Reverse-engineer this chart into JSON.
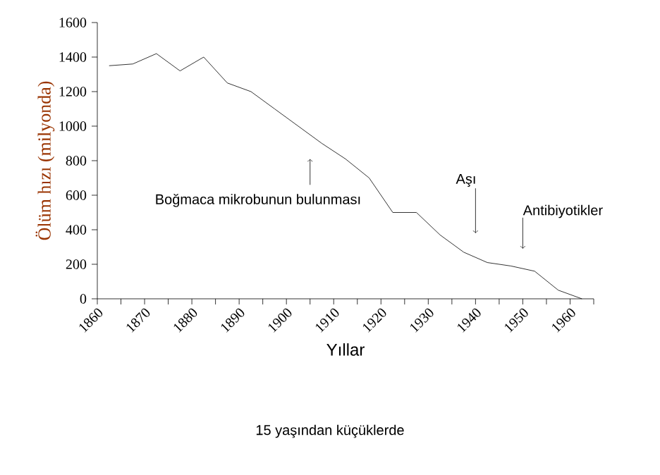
{
  "chart_data": {
    "type": "line",
    "xlabel": "Yıllar",
    "ylabel": "Ölüm hızı (milyonda)",
    "x": [
      1862.5,
      1867.5,
      1872.5,
      1877.5,
      1882.5,
      1887.5,
      1892.5,
      1897.5,
      1902.5,
      1907.5,
      1912.5,
      1917.5,
      1922.5,
      1927.5,
      1932.5,
      1937.5,
      1942.5,
      1947.5,
      1952.5,
      1957.5,
      1962.5
    ],
    "series": [
      {
        "color": "#000000",
        "values": [
          1350,
          1360,
          1420,
          1320,
          1400,
          1250,
          1200,
          1100,
          1000,
          900,
          810,
          700,
          500,
          500,
          370,
          270,
          210,
          190,
          160,
          50,
          0
        ]
      }
    ],
    "xlim": [
      1860,
      1965
    ],
    "xticks": [
      1860,
      {
        "value": 1865,
        "label": null
      },
      1870,
      {
        "value": 1875,
        "label": null
      },
      1880,
      {
        "value": 1885,
        "label": null
      },
      1890,
      {
        "value": 1895,
        "label": null
      },
      1900,
      {
        "value": 1905,
        "label": null
      },
      1910,
      {
        "value": 1915,
        "label": null
      },
      1920,
      {
        "value": 1925,
        "label": null
      },
      1930,
      {
        "value": 1935,
        "label": null
      },
      1940,
      {
        "value": 1945,
        "label": null
      },
      1950,
      {
        "value": 1955,
        "label": null
      },
      1960,
      {
        "value": 1965,
        "label": null
      }
    ],
    "ylim": [
      0,
      1600
    ],
    "yticks": [
      0,
      200,
      400,
      600,
      800,
      1000,
      1200,
      1400,
      1600
    ],
    "grid": false,
    "marker": "none",
    "line_style": "solid",
    "annotations": [
      {
        "text": "Boğmaca mikrobunun bulunması",
        "x": 1905,
        "y": 810
      },
      {
        "text": "Aşı",
        "x": 1940,
        "y": 380
      },
      {
        "text": "Antibiyotikler",
        "x": 1950,
        "y": 290
      },
      "15 yaşından küçüklerde"
    ]
  }
}
